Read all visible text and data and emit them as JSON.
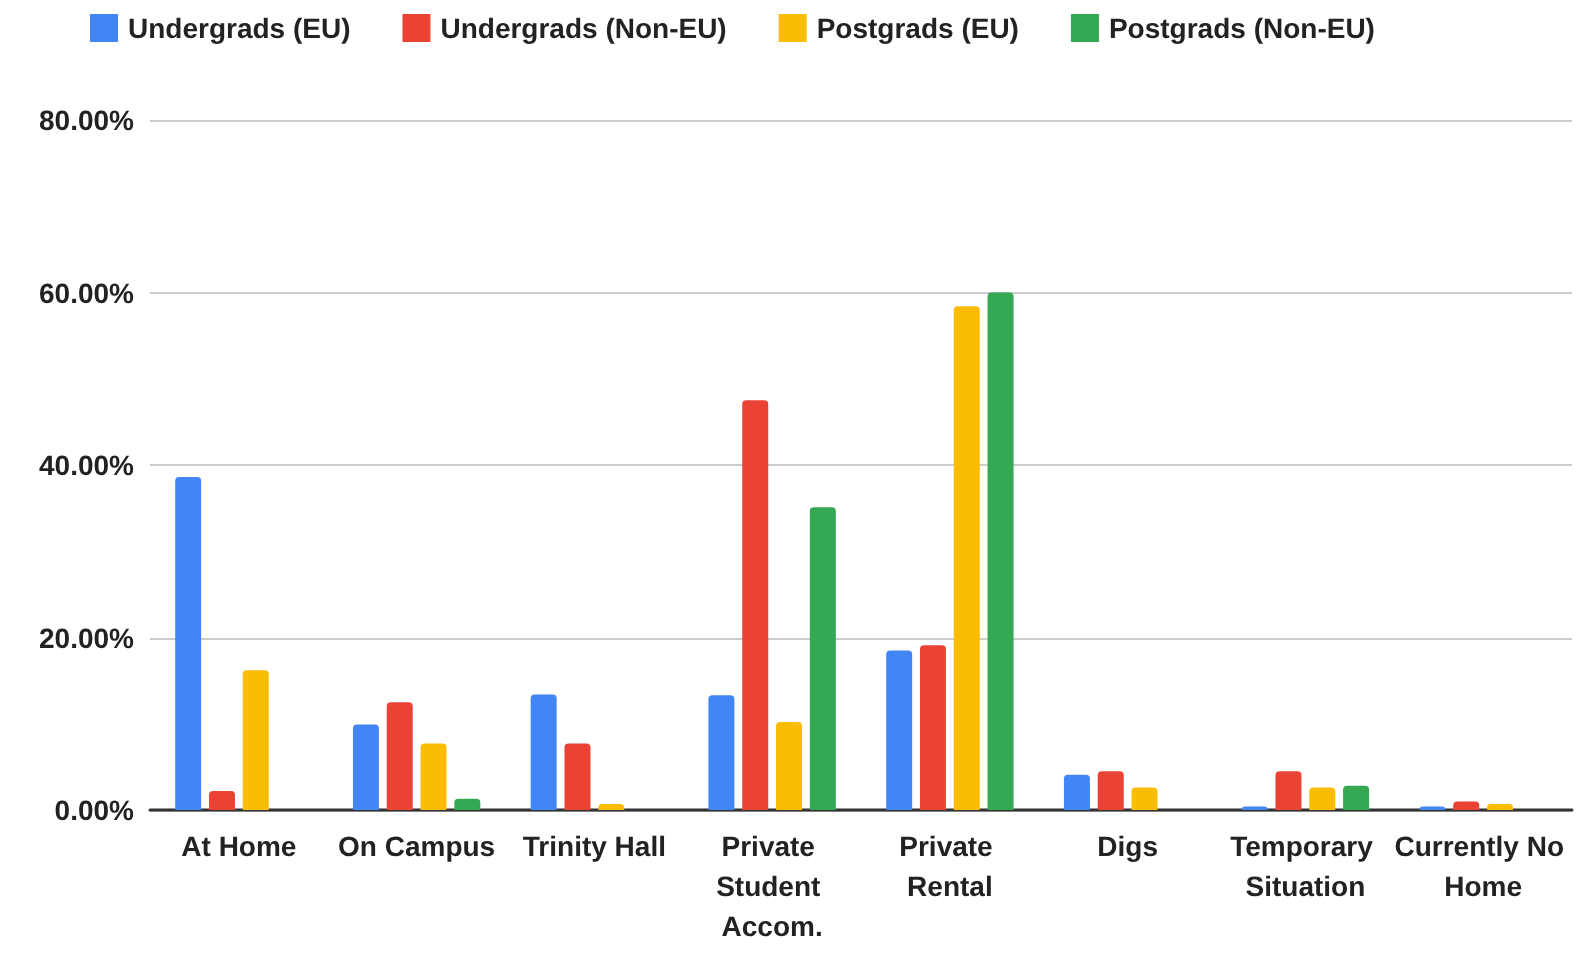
{
  "chart_data": {
    "type": "bar",
    "categories": [
      "At Home",
      "On Campus",
      "Trinity Hall",
      "Private Student Accom.",
      "Private Rental",
      "Digs",
      "Temporary Situation",
      "Currently No Home"
    ],
    "series": [
      {
        "name": "Undergrads (EU)",
        "color": "#4285f4",
        "values": [
          38.6,
          9.9,
          13.4,
          13.3,
          18.5,
          4.1,
          0.4,
          0.4
        ]
      },
      {
        "name": "Undergrads (Non-EU)",
        "color": "#ea4335",
        "values": [
          2.2,
          12.5,
          7.7,
          47.5,
          19.1,
          4.5,
          4.5,
          1.0
        ]
      },
      {
        "name": "Postgrads (EU)",
        "color": "#fbbc04",
        "values": [
          16.2,
          7.7,
          0.7,
          10.2,
          58.4,
          2.6,
          2.6,
          0.7
        ]
      },
      {
        "name": "Postgrads (Non-EU)",
        "color": "#34a853",
        "values": [
          null,
          1.3,
          null,
          35.1,
          60.0,
          null,
          2.8,
          null
        ]
      }
    ],
    "ylim": [
      0,
      80
    ],
    "yticks": [
      {
        "value": 0,
        "label": "0.00%"
      },
      {
        "value": 20,
        "label": "20.00%"
      },
      {
        "value": 40,
        "label": "40.00%"
      },
      {
        "value": 60,
        "label": "60.00%"
      },
      {
        "value": 80,
        "label": "80.00%"
      }
    ],
    "grid": "y",
    "legend": "top left"
  }
}
